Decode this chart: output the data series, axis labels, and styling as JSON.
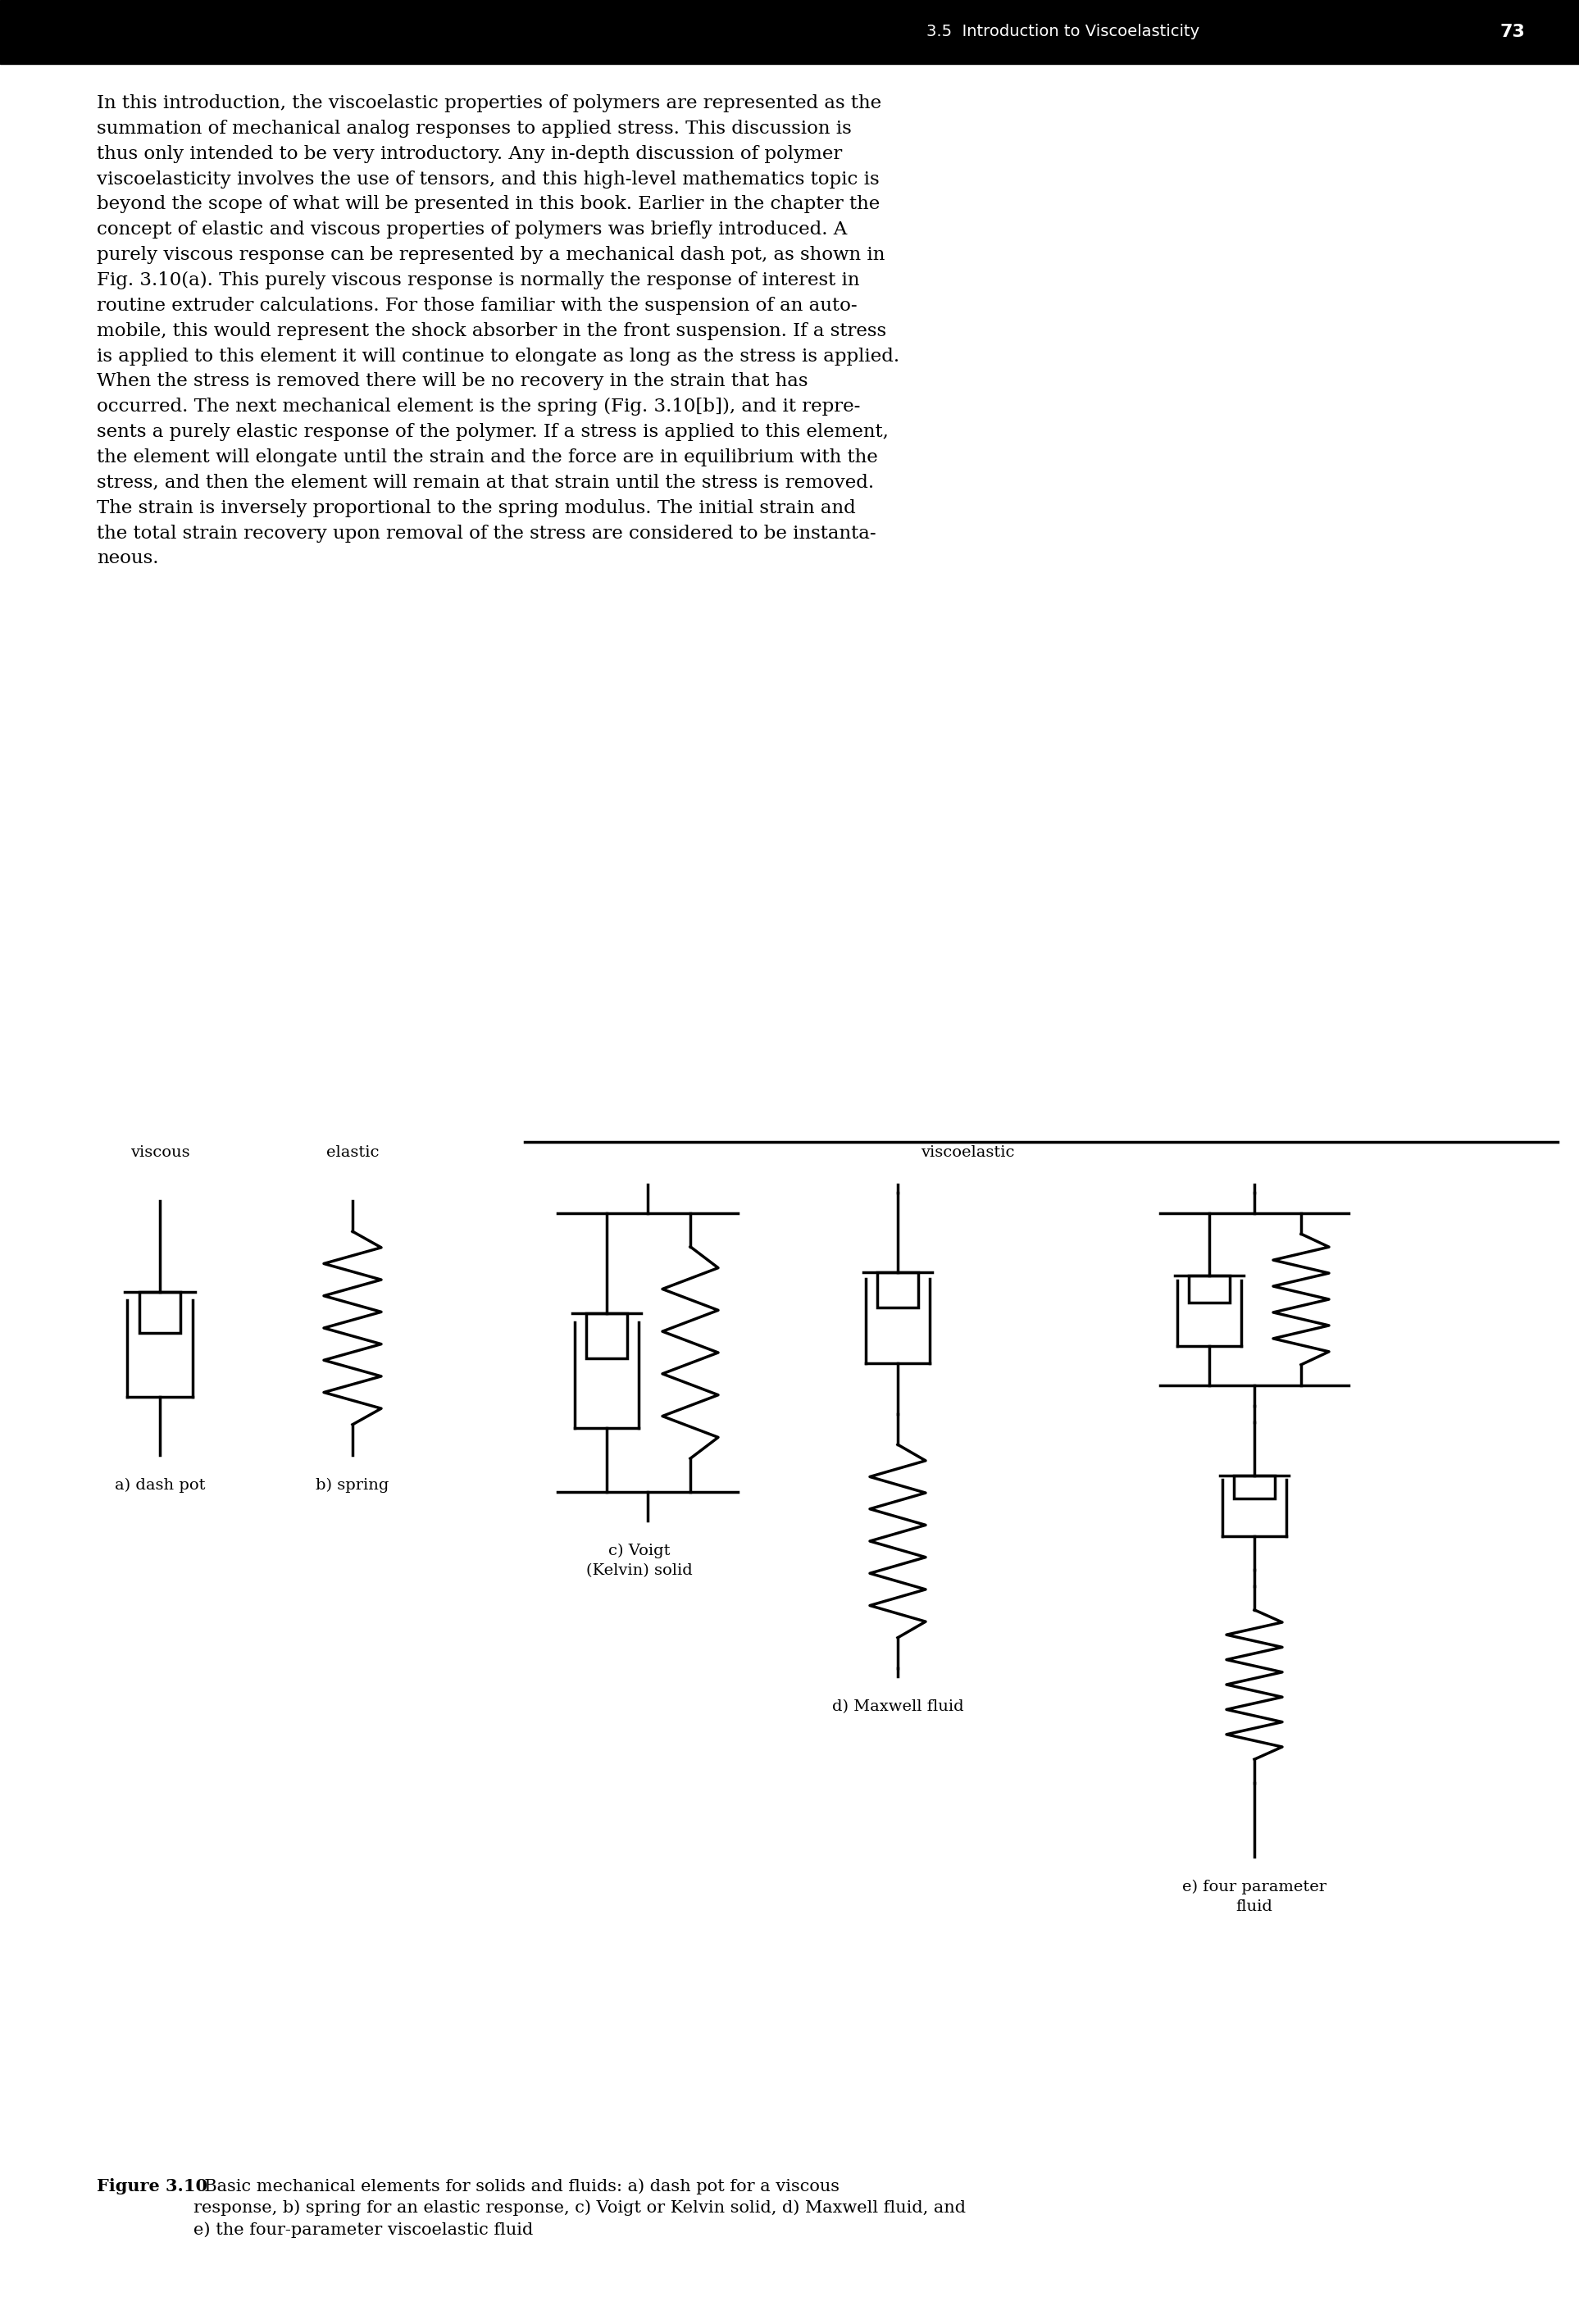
{
  "header_bg": "#000000",
  "header_text_section": "3.5  Introduction to Viscoelasticity",
  "header_text_page": "73",
  "header_text_color": "#ffffff",
  "body_text_color": "#000000",
  "main_text": "In this introduction, the viscoelastic properties of polymers are represented as the\nsummation of mechanical analog responses to applied stress. This discussion is\nthus only intended to be very introductory. Any in-depth discussion of polymer\nviscoelasticity involves the use of tensors, and this high-level mathematics topic is\nbeyond the scope of what will be presented in this book. Earlier in the chapter the\nconcept of elastic and viscous properties of polymers was briefly introduced. A\npurely viscous response can be represented by a mechanical dash pot, as shown in\nFig. 3.10(a). This purely viscous response is normally the response of interest in\nroutine extruder calculations. For those familiar with the suspension of an auto-\nmobile, this would represent the shock absorber in the front suspension. If a stress\nis applied to this element it will continue to elongate as long as the stress is applied.\nWhen the stress is removed there will be no recovery in the strain that has\noccurred. The next mechanical element is the spring (Fig. 3.10[b]), and it repre-\nsents a purely elastic response of the polymer. If a stress is applied to this element,\nthe element will elongate until the strain and the force are in equilibrium with the\nstress, and then the element will remain at that strain until the stress is removed.\nThe strain is inversely proportional to the spring modulus. The initial strain and\nthe total strain recovery upon removal of the stress are considered to be instanta-\nneous.",
  "caption_bold": "Figure 3.10",
  "caption_text": "  Basic mechanical elements for solids and fluids: a) dash pot for a viscous\nresponse, b) spring for an elastic response, c) Voigt or Kelvin solid, d) Maxwell fluid, and\ne) the four-parameter viscoelastic fluid",
  "label_viscous": "viscous",
  "label_elastic": "elastic",
  "label_viscoelastic": "viscoelastic",
  "label_a": "a) dash pot",
  "label_b": "b) spring",
  "label_c": "c) Voigt\n(Kelvin) solid",
  "label_d": "d) Maxwell fluid",
  "label_e": "e) four parameter\nfluid",
  "line_width": 2.5,
  "font_size_body": 16.5,
  "font_size_labels": 14,
  "font_size_header": 14,
  "font_size_caption": 15
}
